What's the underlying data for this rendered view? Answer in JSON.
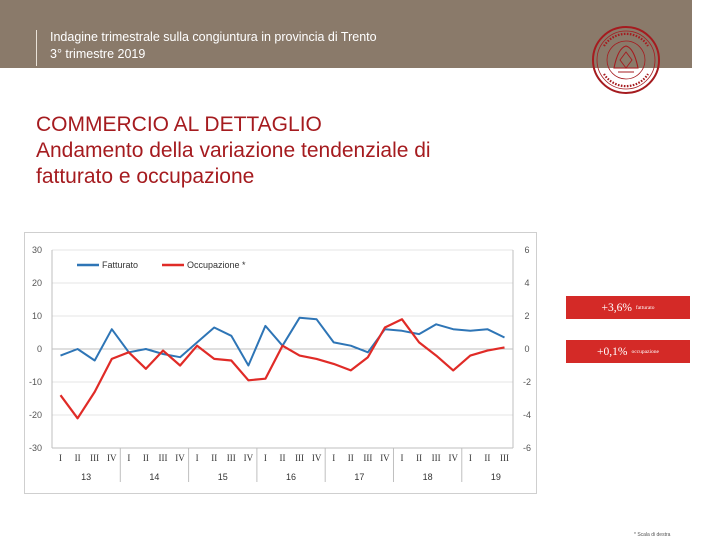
{
  "header": {
    "line1": "Indagine trimestrale sulla congiuntura in provincia di Trento",
    "line2": "3° trimestre 2019",
    "background_color": "#8a7a6a"
  },
  "logo": {
    "name": "seal-logo",
    "text": "CAMERA DI COMMERCIO TRENTO"
  },
  "title": {
    "line1": "COMMERCIO AL DETTAGLIO",
    "line2": "Andamento della variazione tendenziale di",
    "line3": "fatturato e occupazione",
    "color": "#a51b1f"
  },
  "badges": {
    "fatturato": {
      "value": "+3,6%",
      "label": "fatturato"
    },
    "occupazione": {
      "value": "+0,1%",
      "label": "occupazione"
    },
    "color": "#d42a27"
  },
  "footnote": "* Scala di destra",
  "chart_data": {
    "type": "line",
    "legend": [
      "Fatturato",
      "Occupazione *"
    ],
    "legend_position": "top-left",
    "quarters": [
      "I",
      "II",
      "III",
      "IV",
      "I",
      "II",
      "III",
      "IV",
      "I",
      "II",
      "III",
      "IV",
      "I",
      "II",
      "III",
      "IV",
      "I",
      "II",
      "III",
      "IV",
      "I",
      "II",
      "III",
      "IV",
      "I",
      "II",
      "III"
    ],
    "years": [
      {
        "label": "13",
        "start": 0
      },
      {
        "label": "14",
        "start": 4
      },
      {
        "label": "15",
        "start": 8
      },
      {
        "label": "16",
        "start": 12
      },
      {
        "label": "17",
        "start": 16
      },
      {
        "label": "18",
        "start": 20
      },
      {
        "label": "19",
        "start": 24
      }
    ],
    "left_axis": {
      "ticks": [
        "30",
        "20",
        "10",
        "0",
        "-10",
        "-20",
        "-30"
      ],
      "ylim": [
        -30,
        30
      ]
    },
    "right_axis": {
      "ticks": [
        "6",
        "4",
        "2",
        "0",
        "-2",
        "-4",
        "-6"
      ],
      "ylim": [
        -6,
        6
      ]
    },
    "grid": true,
    "series": [
      {
        "name": "Fatturato",
        "axis": "left",
        "color": "#2e75b6",
        "values": [
          -2,
          0,
          -3.5,
          6,
          -1,
          0,
          -1.5,
          -2.5,
          2,
          6.5,
          4,
          -5,
          7,
          1,
          9.5,
          9,
          2,
          1,
          -1,
          6,
          5.5,
          4.5,
          7.5,
          6,
          5.5,
          6,
          3.5
        ]
      },
      {
        "name": "Occupazione *",
        "axis": "right",
        "color": "#e02b27",
        "values": [
          -2.8,
          -4.2,
          -2.6,
          -0.6,
          -0.2,
          -1.2,
          -0.1,
          -1.0,
          0.2,
          -0.6,
          -0.7,
          -1.9,
          -1.8,
          0.2,
          -0.4,
          -0.6,
          -0.9,
          -1.3,
          -0.5,
          1.3,
          1.8,
          0.4,
          -0.4,
          -1.3,
          -0.4,
          -0.1,
          0.1
        ]
      }
    ]
  }
}
